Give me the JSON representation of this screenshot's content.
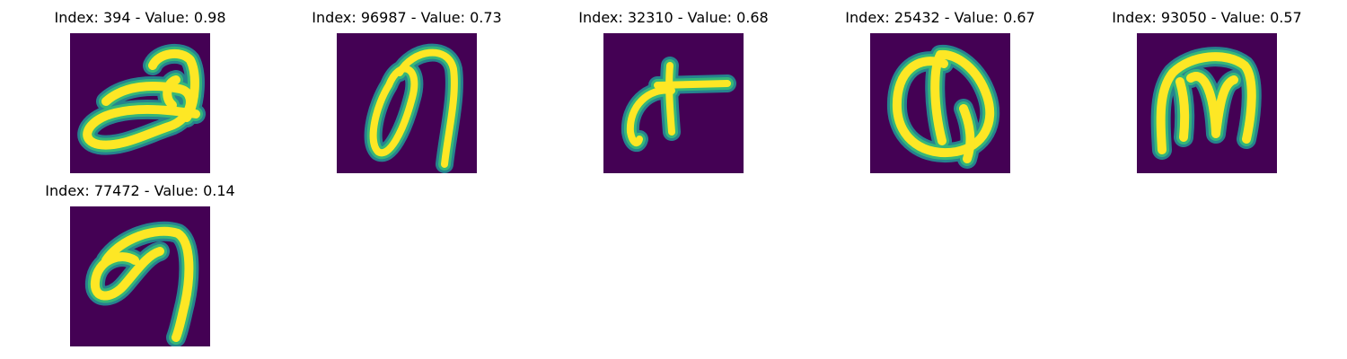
{
  "colors": {
    "background": "#440154",
    "stroke_outer": "#26828e",
    "stroke_mid": "#35b779",
    "stroke_core": "#fde725"
  },
  "panels": [
    {
      "title": "Index: 394 - Value: 0.98",
      "glyph_icon": "handwritten-glyph-looped-icon"
    },
    {
      "title": "Index: 96987 - Value: 0.73",
      "glyph_icon": "handwritten-glyph-oval-hook-icon"
    },
    {
      "title": "Index: 32310 - Value: 0.68",
      "glyph_icon": "handwritten-glyph-cross-icon"
    },
    {
      "title": "Index: 25432 - Value: 0.67",
      "glyph_icon": "handwritten-glyph-round-icon"
    },
    {
      "title": "Index: 93050 - Value: 0.57",
      "glyph_icon": "handwritten-glyph-m-icon"
    },
    {
      "title": "Index: 77472 - Value: 0.14",
      "glyph_icon": "handwritten-glyph-loop-hook-icon"
    }
  ]
}
